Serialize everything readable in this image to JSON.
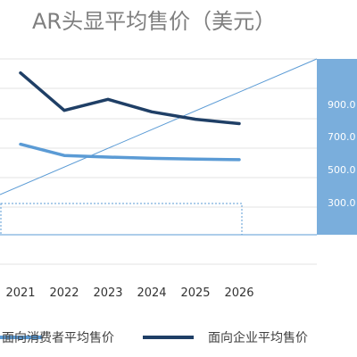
{
  "chart_data": {
    "type": "line",
    "title": "AR头显平均售价（美元）",
    "xlabel": "",
    "ylabel": "",
    "categories": [
      "2021",
      "2022",
      "2023",
      "2024",
      "2025",
      "2026"
    ],
    "series": [
      {
        "name": "面向消费者平均售价",
        "color": "#5b9bd5",
        "values": [
          680,
          375,
          330,
          295,
          275,
          260
        ]
      },
      {
        "name": "面向企业平均售价",
        "color": "#1f3f66",
        "values": [
          2620,
          1600,
          1900,
          1560,
          1360,
          1240
        ]
      }
    ],
    "zoom_axis": {
      "tick_labels": [
        "900.0",
        "700.0",
        "500.0",
        "300.0"
      ],
      "fill_color": "#7aaedc"
    },
    "legend": "bottom",
    "grid": true
  }
}
